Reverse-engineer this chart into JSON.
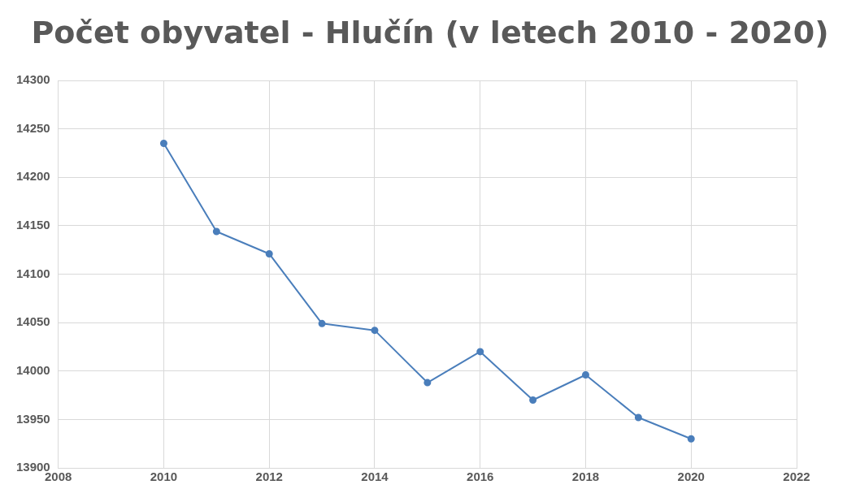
{
  "chart_data": {
    "type": "line",
    "title": "Počet obyvatel - Hlučín (v letech 2010 - 2020)",
    "x": [
      2010,
      2011,
      2012,
      2013,
      2014,
      2015,
      2016,
      2017,
      2018,
      2019,
      2020
    ],
    "series": [
      {
        "color": "#4a7ebb",
        "values": [
          14235,
          14144,
          14121,
          14049,
          14042,
          13988,
          14020,
          13970,
          13996,
          13952,
          13930
        ]
      }
    ],
    "xlim": [
      2008,
      2022
    ],
    "xticks": [
      2008,
      2010,
      2012,
      2014,
      2016,
      2018,
      2020,
      2022
    ],
    "ylim": [
      13900,
      14300
    ],
    "yticks": [
      13900,
      13950,
      14000,
      14050,
      14100,
      14150,
      14200,
      14250,
      14300
    ],
    "grid": true,
    "marker": "circle",
    "line_style": "solid",
    "legend": false
  }
}
